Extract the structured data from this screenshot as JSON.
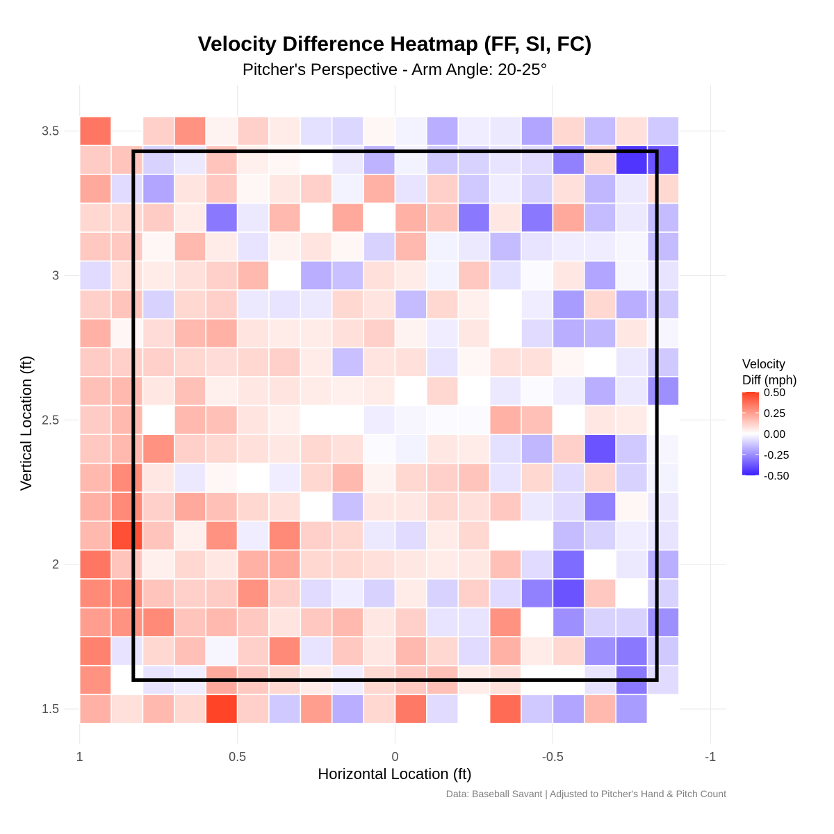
{
  "chart_data": {
    "type": "heatmap",
    "title": "Velocity Difference Heatmap (FF, SI, FC)",
    "subtitle": "Pitcher's Perspective - Arm Angle: 20-25°",
    "xlabel": "Horizontal Location (ft)",
    "ylabel": "Vertical Location (ft)",
    "caption": "Data: Baseball Savant | Adjusted to Pitcher's Hand & Pitch Count",
    "x_reversed": true,
    "xlim": [
      1.05,
      -1.05
    ],
    "ylim": [
      1.38,
      3.66
    ],
    "x_ticks": [
      1,
      0.5,
      0,
      -0.5,
      -1
    ],
    "x_tick_labels": [
      "1",
      "0.5",
      "0",
      "-0.5",
      "-1"
    ],
    "y_ticks": [
      1.5,
      2,
      2.5,
      3,
      3.5
    ],
    "y_tick_labels": [
      "1.5",
      "2",
      "2.5",
      "3",
      "3.5"
    ],
    "grid": true,
    "x_centers": [
      0.95,
      0.85,
      0.75,
      0.65,
      0.55,
      0.45,
      0.35,
      0.25,
      0.15,
      0.05,
      -0.05,
      -0.15,
      -0.25,
      -0.35,
      -0.45,
      -0.55,
      -0.65,
      -0.75,
      -0.85,
      -0.95
    ],
    "y_centers": [
      3.5,
      3.4,
      3.3,
      3.2,
      3.1,
      3.0,
      2.9,
      2.8,
      2.7,
      2.6,
      2.5,
      2.4,
      2.3,
      2.2,
      2.1,
      2.0,
      1.9,
      1.8,
      1.7,
      1.6,
      1.5
    ],
    "values": [
      [
        0.35,
        null,
        0.12,
        0.28,
        0.03,
        0.12,
        0.05,
        -0.07,
        -0.09,
        0.02,
        -0.03,
        -0.18,
        -0.04,
        -0.05,
        -0.2,
        0.1,
        -0.15,
        0.08,
        -0.12,
        null
      ],
      [
        0.13,
        0.15,
        -0.1,
        -0.05,
        0.15,
        0.04,
        0.02,
        0.0,
        -0.05,
        -0.17,
        -0.03,
        -0.12,
        -0.1,
        -0.06,
        -0.08,
        -0.28,
        0.1,
        -0.45,
        -0.38,
        null
      ],
      [
        0.22,
        -0.08,
        -0.2,
        0.07,
        0.14,
        0.02,
        0.06,
        0.12,
        -0.03,
        0.2,
        -0.06,
        0.12,
        -0.12,
        -0.04,
        -0.1,
        0.08,
        -0.16,
        -0.05,
        0.1,
        null
      ],
      [
        0.1,
        0.1,
        0.13,
        0.05,
        -0.3,
        -0.05,
        0.18,
        0.0,
        0.22,
        0.0,
        0.2,
        0.15,
        -0.3,
        0.06,
        -0.3,
        0.22,
        -0.15,
        -0.05,
        -0.15,
        null
      ],
      [
        0.14,
        0.14,
        0.02,
        0.18,
        0.05,
        -0.06,
        0.03,
        0.07,
        0.02,
        -0.1,
        0.18,
        -0.03,
        -0.05,
        -0.15,
        -0.06,
        -0.04,
        -0.04,
        -0.02,
        -0.15,
        null
      ],
      [
        -0.08,
        0.08,
        0.05,
        0.08,
        0.12,
        0.18,
        0.0,
        -0.18,
        -0.14,
        0.08,
        0.05,
        -0.03,
        0.14,
        -0.07,
        -0.01,
        0.06,
        -0.2,
        -0.02,
        -0.06,
        null
      ],
      [
        0.12,
        0.15,
        -0.1,
        0.1,
        0.12,
        -0.05,
        -0.06,
        -0.05,
        0.1,
        0.07,
        -0.15,
        0.1,
        0.04,
        0.0,
        -0.04,
        -0.22,
        0.1,
        -0.18,
        -0.12,
        null
      ],
      [
        0.2,
        0.02,
        0.09,
        0.18,
        0.2,
        0.07,
        0.05,
        0.05,
        0.08,
        0.12,
        0.03,
        -0.04,
        0.06,
        0.0,
        -0.08,
        -0.18,
        -0.16,
        0.06,
        -0.02,
        null
      ],
      [
        0.13,
        0.12,
        0.12,
        0.1,
        0.09,
        0.1,
        0.12,
        0.05,
        -0.14,
        0.07,
        0.08,
        -0.06,
        0.02,
        0.08,
        0.08,
        0.02,
        0.0,
        -0.05,
        -0.12,
        null
      ],
      [
        0.16,
        0.18,
        0.06,
        0.16,
        0.04,
        0.06,
        0.07,
        0.05,
        0.04,
        0.05,
        0.0,
        0.1,
        0.0,
        -0.05,
        -0.01,
        -0.04,
        -0.18,
        -0.05,
        -0.25,
        null
      ],
      [
        0.13,
        0.18,
        0.0,
        0.18,
        0.16,
        0.07,
        0.04,
        0.0,
        0.0,
        -0.04,
        -0.02,
        -0.01,
        -0.01,
        0.2,
        0.16,
        0.0,
        0.06,
        0.05,
        0.0,
        null
      ],
      [
        0.14,
        0.18,
        0.28,
        0.12,
        0.1,
        0.08,
        0.06,
        0.1,
        0.08,
        -0.01,
        -0.03,
        0.06,
        0.05,
        -0.07,
        -0.16,
        0.12,
        -0.38,
        -0.12,
        -0.02,
        null
      ],
      [
        0.18,
        0.3,
        0.06,
        -0.05,
        0.02,
        0.0,
        -0.04,
        0.1,
        0.18,
        0.03,
        0.1,
        0.12,
        0.15,
        -0.06,
        0.1,
        -0.08,
        0.1,
        -0.1,
        -0.03,
        null
      ],
      [
        0.2,
        0.3,
        0.12,
        0.22,
        0.16,
        0.1,
        0.08,
        0.0,
        -0.14,
        0.06,
        0.06,
        0.1,
        0.08,
        0.14,
        -0.05,
        -0.08,
        -0.28,
        0.02,
        -0.05,
        null
      ],
      [
        0.18,
        0.45,
        0.15,
        0.04,
        0.28,
        -0.04,
        0.3,
        0.12,
        0.1,
        -0.05,
        -0.08,
        0.05,
        0.1,
        0.0,
        0.0,
        -0.15,
        -0.1,
        -0.04,
        -0.06,
        null
      ],
      [
        0.35,
        0.15,
        0.04,
        0.1,
        0.06,
        0.2,
        0.22,
        0.1,
        0.1,
        0.08,
        0.06,
        0.05,
        0.06,
        0.16,
        -0.08,
        -0.33,
        0.0,
        -0.05,
        -0.18,
        null
      ],
      [
        0.3,
        0.3,
        0.15,
        0.12,
        0.13,
        0.28,
        0.12,
        -0.08,
        -0.04,
        -0.1,
        0.05,
        -0.1,
        0.12,
        -0.08,
        -0.28,
        -0.38,
        0.14,
        0.0,
        -0.1,
        null
      ],
      [
        0.25,
        0.28,
        0.3,
        0.15,
        0.18,
        0.14,
        0.07,
        0.14,
        0.18,
        0.06,
        0.12,
        -0.06,
        -0.06,
        0.28,
        0.0,
        -0.25,
        -0.1,
        -0.1,
        -0.25,
        null
      ],
      [
        0.32,
        -0.06,
        0.1,
        0.16,
        -0.02,
        0.12,
        0.3,
        -0.06,
        0.14,
        0.06,
        0.18,
        0.1,
        -0.08,
        0.2,
        0.05,
        0.1,
        -0.25,
        -0.3,
        -0.12,
        null
      ],
      [
        0.28,
        0.0,
        -0.06,
        -0.04,
        0.22,
        0.14,
        0.1,
        0.05,
        -0.04,
        0.1,
        0.14,
        0.16,
        0.05,
        0.08,
        0.0,
        0.0,
        -0.06,
        -0.3,
        -0.08,
        null
      ],
      [
        0.2,
        0.08,
        0.18,
        0.1,
        0.48,
        0.12,
        -0.12,
        0.25,
        -0.18,
        0.1,
        0.34,
        -0.08,
        0.0,
        0.38,
        -0.12,
        -0.2,
        0.18,
        -0.22,
        0.0,
        null
      ]
    ],
    "strike_zone": {
      "x": [
        0.83,
        -0.83
      ],
      "y": [
        1.6,
        3.43
      ]
    },
    "colorscale": {
      "low": "#3c1eff",
      "mid": "#ffffff",
      "high": "#ff3c1e",
      "min": -0.5,
      "max": 0.5
    },
    "legend": {
      "title_line1": "Velocity",
      "title_line2": "Diff (mph)",
      "ticks": [
        0.5,
        0.25,
        0.0,
        -0.25,
        -0.5
      ],
      "tick_labels": [
        "0.50",
        "0.25",
        "0.00",
        "-0.25",
        "-0.50"
      ],
      "position": "right"
    }
  }
}
